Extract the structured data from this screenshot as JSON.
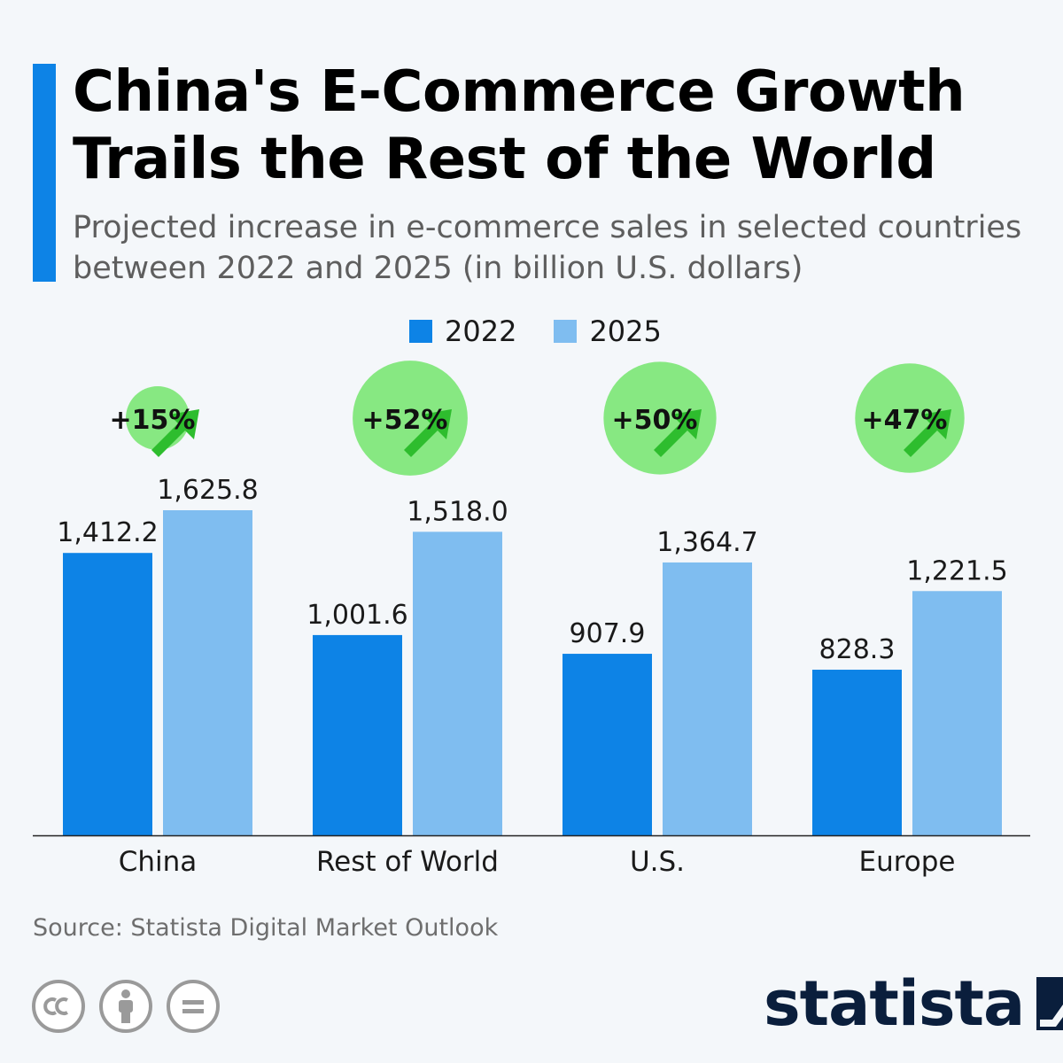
{
  "header": {
    "title": "China's E-Commerce Growth Trails the Rest of the World",
    "subtitle": "Projected increase in e-commerce sales in selected countries between 2022 and 2025 (in billion U.S. dollars)"
  },
  "footer": {
    "source": "Source: Statista Digital Market Outlook",
    "brand": "statista",
    "license_icons": [
      "cc-icon",
      "attribution-icon",
      "no-derivatives-icon"
    ]
  },
  "colors": {
    "accent": "#0d83e6",
    "series_2022": "#0d83e6",
    "series_2025": "#7fbdf0",
    "growth_circle": "#87e882",
    "growth_arrow": "#2ebd2e"
  },
  "chart_data": {
    "type": "bar",
    "categories": [
      "China",
      "Rest of World",
      "U.S.",
      "Europe"
    ],
    "series": [
      {
        "name": "2022",
        "values": [
          1412.2,
          1001.6,
          907.9,
          828.3
        ],
        "labels": [
          "1,412.2",
          "1,001.6",
          "907.9",
          "828.3"
        ]
      },
      {
        "name": "2025",
        "values": [
          1625.8,
          1518.0,
          1364.7,
          1221.5
        ],
        "labels": [
          "1,625.8",
          "1,518.0",
          "1,364.7",
          "1,221.5"
        ]
      }
    ],
    "growth_labels": [
      "+15%",
      "+52%",
      "+50%",
      "+47%"
    ],
    "growth_values": [
      15,
      52,
      50,
      47
    ],
    "ylim": [
      0,
      1625.8
    ],
    "grid": false,
    "legend_position": "top-center"
  }
}
